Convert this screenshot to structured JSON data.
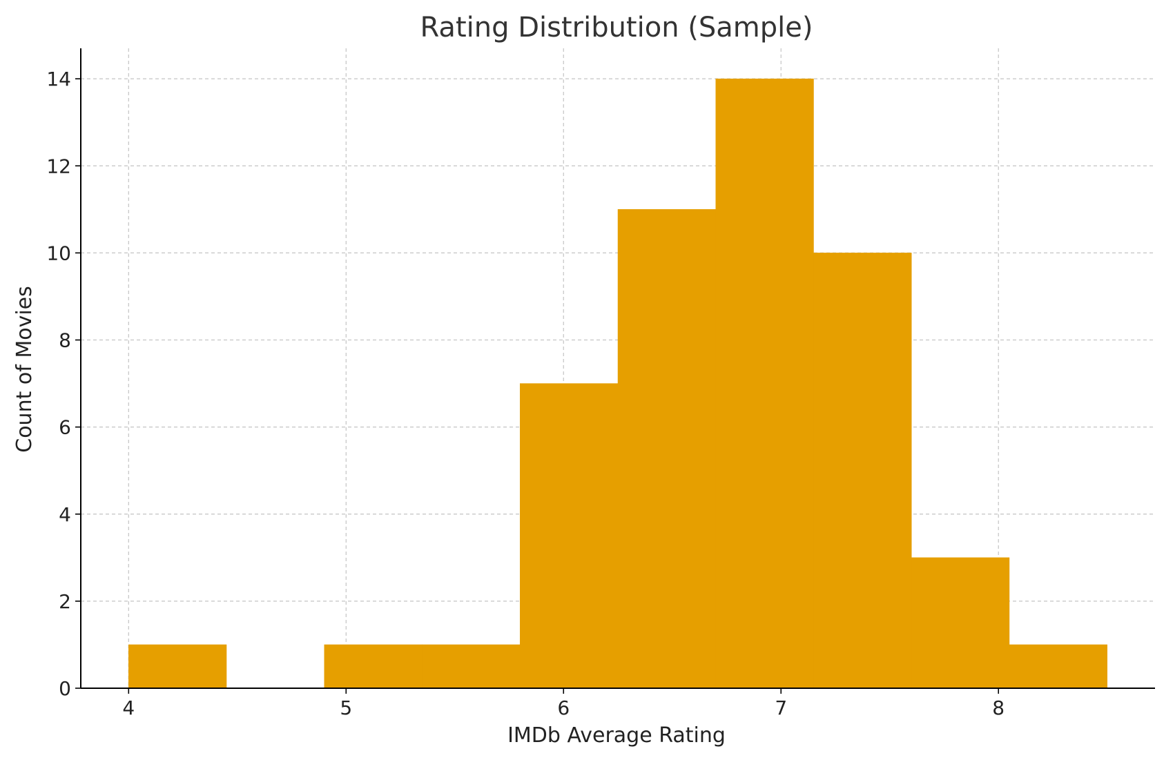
{
  "chart_data": {
    "type": "bar",
    "title": "Rating Distribution (Sample)",
    "xlabel": "IMDb Average Rating",
    "ylabel": "Count of Movies",
    "bin_edges": [
      4.0,
      4.45,
      4.9,
      5.35,
      5.8,
      6.25,
      6.7,
      7.15,
      7.6,
      8.05,
      8.5
    ],
    "values": [
      1,
      0,
      1,
      1,
      7,
      11,
      14,
      10,
      3,
      1
    ],
    "xlim": [
      3.78,
      8.72
    ],
    "ylim": [
      0,
      14.7
    ],
    "x_ticks": [
      4,
      5,
      6,
      7,
      8
    ],
    "y_ticks": [
      0,
      2,
      4,
      6,
      8,
      10,
      12,
      14
    ],
    "grid": true,
    "bar_color": "#E69F00"
  }
}
